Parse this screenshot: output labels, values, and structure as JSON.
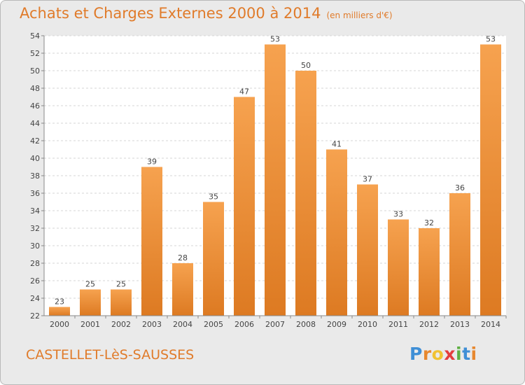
{
  "chart_data": {
    "type": "bar",
    "title": "Achats et Charges Externes 2000 à 2014",
    "subtitle": "(en milliers d'€)",
    "categories": [
      "2000",
      "2001",
      "2002",
      "2003",
      "2004",
      "2005",
      "2006",
      "2007",
      "2008",
      "2009",
      "2010",
      "2011",
      "2012",
      "2013",
      "2014"
    ],
    "values": [
      23,
      25,
      25,
      39,
      28,
      35,
      47,
      53,
      50,
      41,
      37,
      33,
      32,
      36,
      53
    ],
    "ylim": [
      22,
      54
    ],
    "yticks": [
      22,
      24,
      26,
      28,
      30,
      32,
      34,
      36,
      38,
      40,
      42,
      44,
      46,
      48,
      50,
      52,
      54
    ],
    "grid": true,
    "colors": {
      "bar_light": "#f6a24f",
      "bar_dark": "#dd7a22",
      "title": "#e07b2a"
    }
  },
  "footer": {
    "town": "CASTELLET-LèS-SAUSSES",
    "logo_letters": [
      "P",
      "r",
      "o",
      "x",
      "i",
      "t",
      "i"
    ],
    "logo_colors": [
      "#3f8fd6",
      "#e7882f",
      "#f1c232",
      "#e43d3d",
      "#5fb043",
      "#3f8fd6",
      "#e7882f"
    ]
  }
}
